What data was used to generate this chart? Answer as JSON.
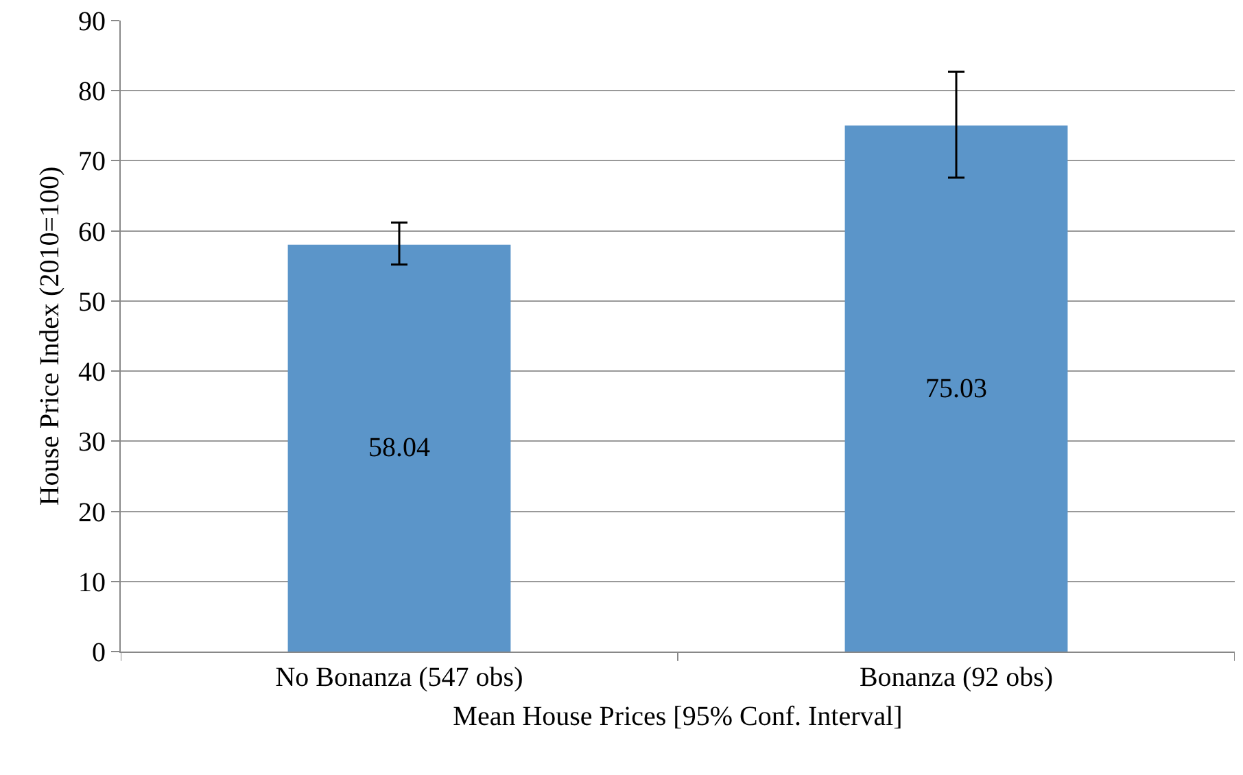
{
  "chart_data": {
    "type": "bar",
    "xlabel": "Mean House Prices [95% Conf. Interval]",
    "ylabel": "House Price Index (2010=100)",
    "categories": [
      "No Bonanza (547 obs)",
      "Bonanza (92 obs)"
    ],
    "values": [
      58.04,
      75.03
    ],
    "color": "#5b95c9",
    "errors": [
      [
        55.2,
        61.2
      ],
      [
        67.6,
        82.7
      ]
    ],
    "data_labels": true,
    "ylim": [
      0,
      90
    ],
    "yticks": [
      0,
      10,
      20,
      30,
      40,
      50,
      60,
      70,
      80,
      90
    ],
    "grid": "y",
    "legend": false
  }
}
